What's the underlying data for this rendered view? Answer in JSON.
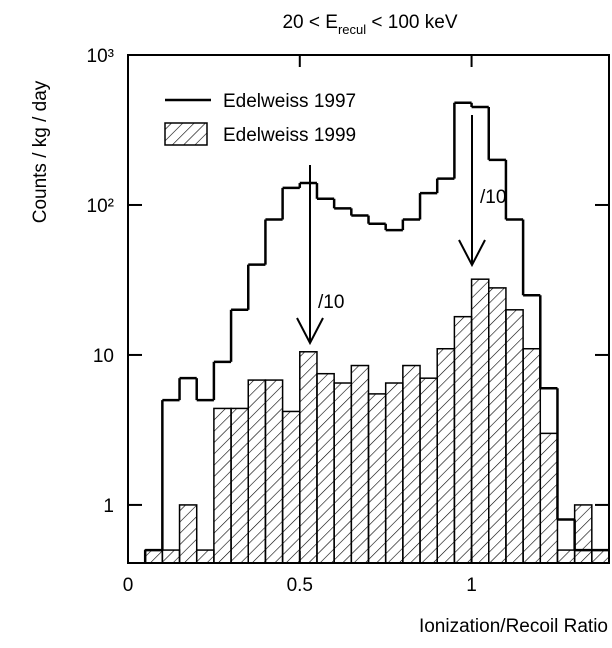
{
  "chart_data": {
    "type": "histogram",
    "title": {
      "text": "20 < E",
      "subscript": "recul",
      "suffix": " < 100 keV"
    },
    "x_label": "Ionization/Recoil Ratio",
    "y_label": "Counts / kg / day",
    "bins": [
      0.05,
      0.1,
      0.15,
      0.2,
      0.25,
      0.3,
      0.35,
      0.4,
      0.45,
      0.5,
      0.55,
      0.6,
      0.65,
      0.7,
      0.75,
      0.8,
      0.85,
      0.9,
      0.95,
      1.0,
      1.05,
      1.1,
      1.15,
      1.2,
      1.25,
      1.3,
      1.35,
      1.4
    ],
    "series": [
      {
        "name": "Edelweiss 1997",
        "color": "#000000",
        "style": "step",
        "values": [
          0.5,
          5,
          7,
          5,
          9,
          20,
          40,
          80,
          130,
          140,
          110,
          95,
          85,
          75,
          68,
          80,
          120,
          150,
          480,
          450,
          200,
          80,
          25,
          6,
          0.8,
          0.5,
          0.5
        ]
      },
      {
        "name": "Edelweiss 1999",
        "color": "#000000",
        "style": "hatch",
        "values": [
          0.5,
          0.5,
          1,
          0.5,
          4.4,
          4.4,
          6.8,
          6.8,
          4.2,
          10.5,
          7.5,
          6.5,
          8.5,
          5.5,
          6.5,
          8.5,
          7,
          11,
          18,
          32,
          28,
          20,
          11,
          3,
          0.5,
          1,
          0.5
        ]
      }
    ],
    "xlim": [
      0,
      1.4
    ],
    "ylim": [
      0.41,
      1000
    ],
    "log_y": true,
    "xticks": [
      0,
      0.5,
      1
    ],
    "yticks": [
      {
        "value": 1000,
        "label": "10³"
      },
      {
        "value": 100,
        "label": "10²"
      },
      10,
      1
    ],
    "legend": "upper left",
    "annotations": [
      "/10",
      "/10"
    ]
  }
}
